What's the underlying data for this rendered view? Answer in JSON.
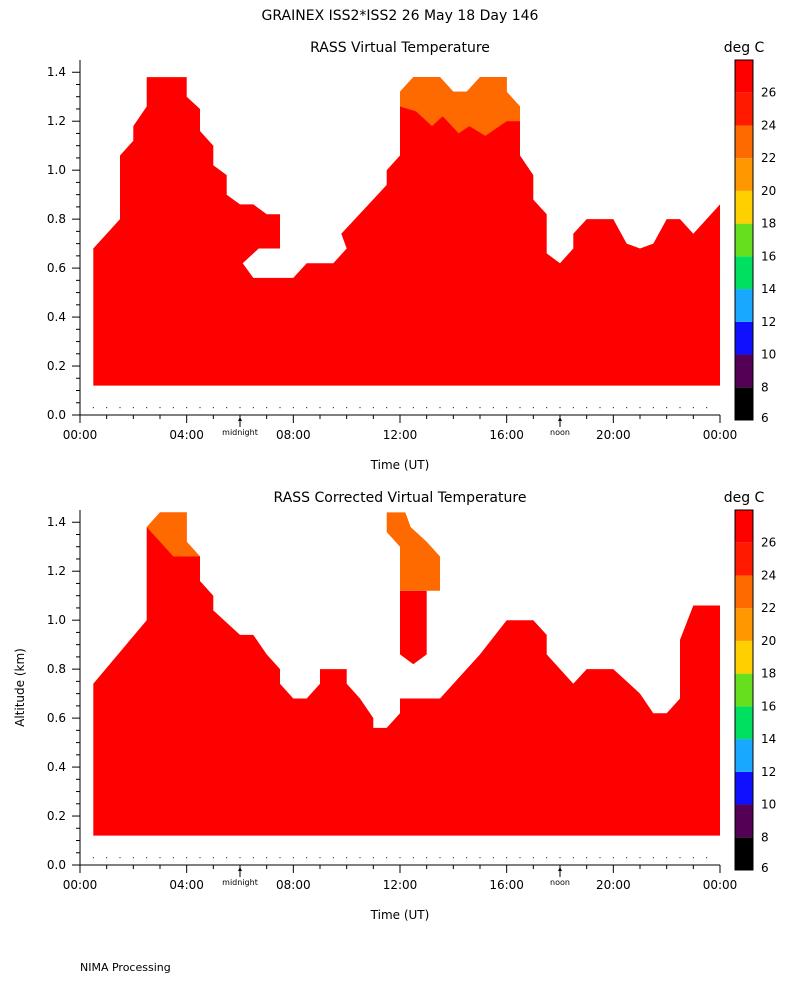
{
  "page": {
    "title": "GRAINEX ISS2*ISS2  26 May 18 Day 146",
    "footer": "NIMA Processing"
  },
  "colors": {
    "background": "#ffffff",
    "levels": [
      "#000000",
      "#540054",
      "#1010ff",
      "#18a8ff",
      "#00e060",
      "#66e01c",
      "#ffd000",
      "#ff9800",
      "#ff6a00",
      "#ff1a00",
      "#ff0000"
    ]
  },
  "chart_data": [
    {
      "type": "heatmap",
      "title": "RASS Virtual Temperature",
      "xlabel": "Time (UT)",
      "ylabel": "",
      "x_ticks": [
        "00:00",
        "04:00",
        "08:00",
        "12:00",
        "16:00",
        "20:00",
        "00:00"
      ],
      "x_range_hours": [
        0,
        24
      ],
      "x_markers": [
        {
          "label": "midnight",
          "x": 6
        },
        {
          "label": "noon",
          "x": 18
        }
      ],
      "y_ticks": [
        "0.0",
        "0.2",
        "0.4",
        "0.6",
        "0.8",
        "1.0",
        "1.2",
        "1.4"
      ],
      "ylim": [
        0,
        1.45
      ],
      "colorbar_unit": "deg C",
      "colorbar_levels": [
        6,
        8,
        10,
        12,
        14,
        16,
        18,
        20,
        22,
        24,
        26
      ],
      "grid": false,
      "base_altitude_km": 0.12,
      "top_profile_hours_km": [
        [
          0.5,
          0.68
        ],
        [
          1.5,
          0.8
        ],
        [
          1.5,
          1.06
        ],
        [
          2.0,
          1.12
        ],
        [
          2.0,
          1.18
        ],
        [
          2.5,
          1.26
        ],
        [
          2.5,
          1.38
        ],
        [
          4.0,
          1.38
        ],
        [
          4.0,
          1.3
        ],
        [
          4.5,
          1.25
        ],
        [
          4.5,
          1.16
        ],
        [
          5.0,
          1.1
        ],
        [
          5.0,
          1.02
        ],
        [
          5.5,
          0.98
        ],
        [
          5.5,
          0.9
        ],
        [
          6.0,
          0.86
        ],
        [
          6.5,
          0.86
        ],
        [
          7.0,
          0.82
        ],
        [
          7.5,
          0.82
        ],
        [
          7.5,
          0.68
        ],
        [
          6.7,
          0.68
        ],
        [
          6.1,
          0.62
        ],
        [
          6.5,
          0.56
        ],
        [
          8.0,
          0.56
        ],
        [
          8.5,
          0.62
        ],
        [
          9.5,
          0.62
        ],
        [
          10.0,
          0.68
        ],
        [
          9.8,
          0.74
        ],
        [
          11.5,
          0.94
        ],
        [
          11.5,
          1.0
        ],
        [
          12.0,
          1.06
        ],
        [
          12.0,
          1.32
        ],
        [
          12.5,
          1.38
        ],
        [
          13.5,
          1.38
        ],
        [
          14.0,
          1.32
        ],
        [
          14.5,
          1.32
        ],
        [
          15.0,
          1.38
        ],
        [
          16.0,
          1.38
        ],
        [
          16.0,
          1.32
        ],
        [
          16.5,
          1.26
        ],
        [
          16.5,
          1.06
        ],
        [
          17.0,
          0.98
        ],
        [
          17.0,
          0.88
        ],
        [
          17.5,
          0.82
        ],
        [
          17.5,
          0.66
        ],
        [
          18.0,
          0.62
        ],
        [
          18.5,
          0.68
        ],
        [
          18.5,
          0.74
        ],
        [
          19.0,
          0.8
        ],
        [
          20.0,
          0.8
        ],
        [
          20.5,
          0.7
        ],
        [
          21.0,
          0.68
        ],
        [
          21.5,
          0.7
        ],
        [
          22.0,
          0.8
        ],
        [
          22.5,
          0.8
        ],
        [
          23.0,
          0.74
        ],
        [
          24.0,
          0.86
        ],
        [
          24.0,
          0.88
        ],
        [
          24.0,
          0.12
        ]
      ],
      "warm_regions": [
        {
          "level": 22,
          "outline_hours_km": [
            [
              12.0,
              1.32
            ],
            [
              12.5,
              1.38
            ],
            [
              13.5,
              1.38
            ],
            [
              14.0,
              1.32
            ],
            [
              14.5,
              1.32
            ],
            [
              15.0,
              1.38
            ],
            [
              16.0,
              1.38
            ],
            [
              16.0,
              1.32
            ],
            [
              16.5,
              1.26
            ],
            [
              16.5,
              1.2
            ],
            [
              16.0,
              1.2
            ],
            [
              15.2,
              1.14
            ],
            [
              14.6,
              1.18
            ],
            [
              14.2,
              1.15
            ],
            [
              13.6,
              1.22
            ],
            [
              13.2,
              1.18
            ],
            [
              12.6,
              1.24
            ],
            [
              12.0,
              1.26
            ]
          ]
        }
      ],
      "fill_level": 26
    },
    {
      "type": "heatmap",
      "title": "RASS Corrected Virtual Temperature",
      "xlabel": "Time (UT)",
      "ylabel": "Altitude (km)",
      "x_ticks": [
        "00:00",
        "04:00",
        "08:00",
        "12:00",
        "16:00",
        "20:00",
        "00:00"
      ],
      "x_range_hours": [
        0,
        24
      ],
      "x_markers": [
        {
          "label": "midnight",
          "x": 6
        },
        {
          "label": "noon",
          "x": 18
        }
      ],
      "y_ticks": [
        "0.0",
        "0.2",
        "0.4",
        "0.6",
        "0.8",
        "1.0",
        "1.2",
        "1.4"
      ],
      "ylim": [
        0,
        1.45
      ],
      "colorbar_unit": "deg C",
      "colorbar_levels": [
        6,
        8,
        10,
        12,
        14,
        16,
        18,
        20,
        22,
        24,
        26
      ],
      "grid": false,
      "base_altitude_km": 0.12,
      "top_profile_hours_km": [
        [
          0.5,
          0.74
        ],
        [
          2.5,
          1.0
        ],
        [
          2.5,
          1.38
        ],
        [
          3.0,
          1.44
        ],
        [
          4.0,
          1.44
        ],
        [
          4.0,
          1.32
        ],
        [
          4.5,
          1.26
        ],
        [
          4.5,
          1.16
        ],
        [
          5.0,
          1.1
        ],
        [
          5.0,
          1.04
        ],
        [
          6.0,
          0.94
        ],
        [
          6.5,
          0.94
        ],
        [
          7.0,
          0.86
        ],
        [
          7.5,
          0.8
        ],
        [
          7.5,
          0.74
        ],
        [
          8.0,
          0.68
        ],
        [
          8.5,
          0.68
        ],
        [
          9.0,
          0.74
        ],
        [
          9.0,
          0.8
        ],
        [
          10.0,
          0.8
        ],
        [
          10.0,
          0.74
        ],
        [
          10.5,
          0.68
        ],
        [
          11.0,
          0.6
        ],
        [
          11.0,
          0.56
        ],
        [
          11.5,
          0.56
        ],
        [
          12.0,
          0.62
        ],
        [
          12.0,
          0.68
        ],
        [
          13.5,
          0.68
        ],
        [
          15.0,
          0.86
        ],
        [
          16.0,
          1.0
        ],
        [
          17.0,
          1.0
        ],
        [
          17.5,
          0.94
        ],
        [
          17.5,
          0.86
        ],
        [
          18.5,
          0.74
        ],
        [
          19.0,
          0.8
        ],
        [
          20.0,
          0.8
        ],
        [
          21.0,
          0.7
        ],
        [
          21.5,
          0.62
        ],
        [
          22.0,
          0.62
        ],
        [
          22.5,
          0.68
        ],
        [
          22.5,
          0.92
        ],
        [
          23.0,
          1.06
        ],
        [
          24.0,
          1.06
        ],
        [
          24.0,
          0.12
        ]
      ],
      "floating_regions": [
        {
          "level": 26,
          "outline_hours_km": [
            [
              12.0,
              1.12
            ],
            [
              12.5,
              1.12
            ],
            [
              13.0,
              1.12
            ],
            [
              13.0,
              0.86
            ],
            [
              12.5,
              0.82
            ],
            [
              12.0,
              0.86
            ]
          ]
        },
        {
          "level": 22,
          "outline_hours_km": [
            [
              11.5,
              1.44
            ],
            [
              12.2,
              1.44
            ],
            [
              12.4,
              1.38
            ],
            [
              13.0,
              1.32
            ],
            [
              13.5,
              1.26
            ],
            [
              13.5,
              1.12
            ],
            [
              12.0,
              1.12
            ],
            [
              12.0,
              1.3
            ],
            [
              11.5,
              1.36
            ]
          ]
        }
      ],
      "warm_regions": [
        {
          "level": 22,
          "outline_hours_km": [
            [
              2.5,
              1.38
            ],
            [
              3.0,
              1.44
            ],
            [
              4.0,
              1.44
            ],
            [
              4.0,
              1.32
            ],
            [
              4.5,
              1.26
            ],
            [
              3.5,
              1.26
            ],
            [
              3.0,
              1.32
            ]
          ]
        }
      ],
      "fill_level": 26
    }
  ]
}
